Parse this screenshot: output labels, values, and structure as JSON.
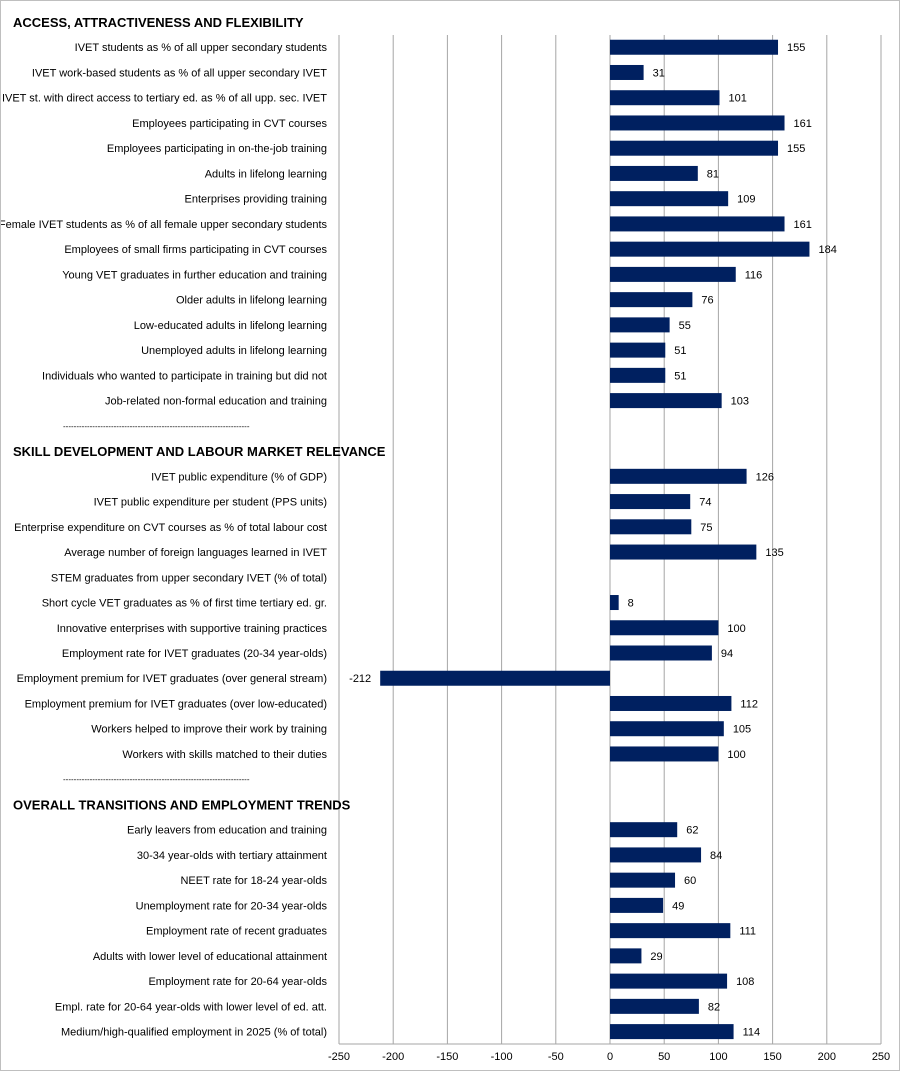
{
  "colors": {
    "bar": "#002060",
    "grid": "#a6a6a6",
    "text": "#000000"
  },
  "chart_data": {
    "type": "bar",
    "orientation": "horizontal",
    "xlim": [
      -250,
      250
    ],
    "x_ticks": [
      "-250",
      "-200",
      "-150",
      "-100",
      "-50",
      "0",
      "50",
      "100",
      "150",
      "200",
      "250"
    ],
    "grid": true,
    "separator": "----------------------------------------------------------------------",
    "rows": [
      {
        "kind": "section",
        "label": "ACCESS, ATTRACTIVENESS AND FLEXIBILITY"
      },
      {
        "kind": "bar",
        "label": "IVET students as % of all upper secondary students",
        "value": 155
      },
      {
        "kind": "bar",
        "label": "IVET work-based students as % of all upper secondary IVET",
        "value": 31
      },
      {
        "kind": "bar",
        "label": "IVET st. with direct access to tertiary ed. as % of all upp. sec. IVET",
        "value": 101
      },
      {
        "kind": "bar",
        "label": "Employees participating in CVT courses",
        "value": 161
      },
      {
        "kind": "bar",
        "label": "Employees participating in on-the-job training",
        "value": 155
      },
      {
        "kind": "bar",
        "label": "Adults in lifelong learning",
        "value": 81
      },
      {
        "kind": "bar",
        "label": "Enterprises providing training",
        "value": 109
      },
      {
        "kind": "bar",
        "label": "Female IVET students as % of all female upper secondary students",
        "value": 161
      },
      {
        "kind": "bar",
        "label": "Employees of small firms participating in CVT courses",
        "value": 184
      },
      {
        "kind": "bar",
        "label": "Young VET graduates in further education and training",
        "value": 116
      },
      {
        "kind": "bar",
        "label": "Older adults in lifelong learning",
        "value": 76
      },
      {
        "kind": "bar",
        "label": "Low-educated adults in lifelong learning",
        "value": 55
      },
      {
        "kind": "bar",
        "label": "Unemployed adults in lifelong learning",
        "value": 51
      },
      {
        "kind": "bar",
        "label": "Individuals who wanted to participate in training but did not",
        "value": 51
      },
      {
        "kind": "bar",
        "label": "Job-related non-formal education and training",
        "value": 103
      },
      {
        "kind": "separator"
      },
      {
        "kind": "section",
        "label": "SKILL DEVELOPMENT AND LABOUR MARKET RELEVANCE"
      },
      {
        "kind": "bar",
        "label": "IVET public expenditure (% of GDP)",
        "value": 126
      },
      {
        "kind": "bar",
        "label": "IVET public expenditure per student (PPS units)",
        "value": 74
      },
      {
        "kind": "bar",
        "label": "Enterprise expenditure on CVT courses as % of total labour cost",
        "value": 75
      },
      {
        "kind": "bar",
        "label": "Average number of foreign languages learned in IVET",
        "value": 135
      },
      {
        "kind": "bar",
        "label": "STEM graduates from upper secondary IVET (% of total)",
        "value": null
      },
      {
        "kind": "bar",
        "label": "Short cycle VET graduates as % of first time tertiary ed. gr.",
        "value": 8
      },
      {
        "kind": "bar",
        "label": "Innovative enterprises with supportive training practices",
        "value": 100
      },
      {
        "kind": "bar",
        "label": "Employment rate for IVET graduates (20-34 year-olds)",
        "value": 94
      },
      {
        "kind": "bar",
        "label": "Employment premium for IVET graduates (over general stream)",
        "value": -212
      },
      {
        "kind": "bar",
        "label": "Employment premium for IVET graduates (over low-educated)",
        "value": 112
      },
      {
        "kind": "bar",
        "label": "Workers helped to improve their work by training",
        "value": 105
      },
      {
        "kind": "bar",
        "label": "Workers with skills matched to their duties",
        "value": 100
      },
      {
        "kind": "separator"
      },
      {
        "kind": "section",
        "label": "OVERALL TRANSITIONS AND EMPLOYMENT TRENDS"
      },
      {
        "kind": "bar",
        "label": "Early leavers from education and training",
        "value": 62
      },
      {
        "kind": "bar",
        "label": "30-34 year-olds with tertiary attainment",
        "value": 84
      },
      {
        "kind": "bar",
        "label": "NEET rate for 18-24 year-olds",
        "value": 60
      },
      {
        "kind": "bar",
        "label": "Unemployment rate for 20-34 year-olds",
        "value": 49
      },
      {
        "kind": "bar",
        "label": "Employment rate of recent graduates",
        "value": 111
      },
      {
        "kind": "bar",
        "label": "Adults with lower level of educational attainment",
        "value": 29
      },
      {
        "kind": "bar",
        "label": "Employment rate for 20-64 year-olds",
        "value": 108
      },
      {
        "kind": "bar",
        "label": "Empl. rate for 20-64 year-olds with lower level of ed. att.",
        "value": 82
      },
      {
        "kind": "bar",
        "label": "Medium/high-qualified employment in 2025 (% of total)",
        "value": 114
      }
    ]
  }
}
